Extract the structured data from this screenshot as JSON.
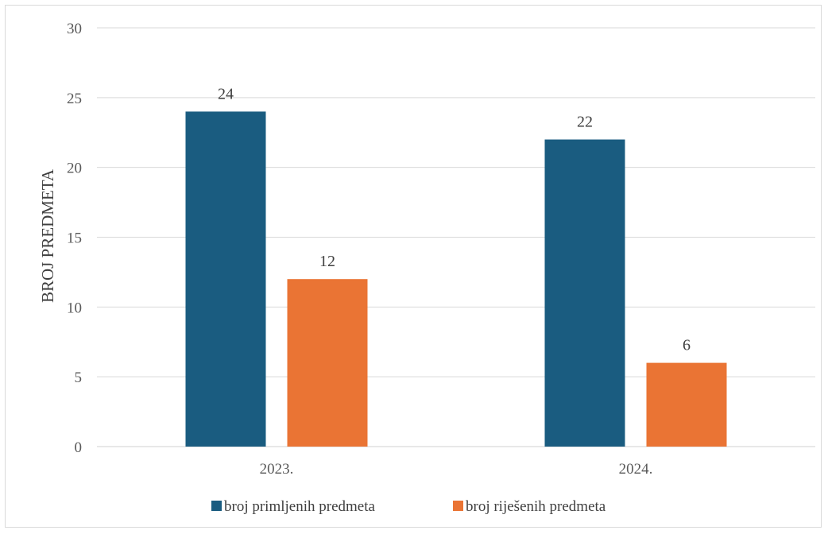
{
  "chart_data": {
    "type": "bar",
    "ylabel": "BROJ PREDMETA",
    "xlabel": "",
    "ylim": [
      0,
      30
    ],
    "yticks": [
      0,
      5,
      10,
      15,
      20,
      25,
      30
    ],
    "grid": true,
    "legend_position": "bottom",
    "categories": [
      "2023.",
      "2024."
    ],
    "series": [
      {
        "name": "broj primljenih predmeta",
        "color": "#1a5c80",
        "values": [
          24,
          22
        ]
      },
      {
        "name": "broj riješenih predmeta",
        "color": "#ea7434",
        "values": [
          12,
          6
        ]
      }
    ]
  }
}
